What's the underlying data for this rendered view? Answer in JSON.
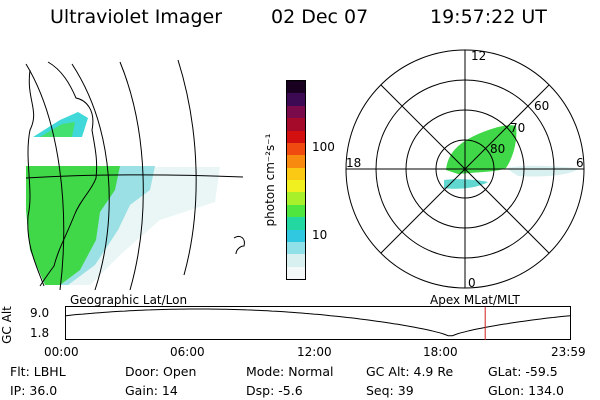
{
  "header": {
    "instrument": "Ultraviolet Imager",
    "date": "02 Dec 07",
    "time": "19:57:22 UT"
  },
  "colorbar": {
    "unit_label": "photon cm⁻²s⁻¹",
    "ticks": [
      "100",
      "10"
    ],
    "colors": [
      "#1a0020",
      "#3b0a52",
      "#7a0b4a",
      "#a50a2a",
      "#d21010",
      "#f04a10",
      "#f98a10",
      "#fbc814",
      "#f0f020",
      "#a8f02a",
      "#50e640",
      "#22d8a0",
      "#30c8e0",
      "#90e0e8",
      "#d8f0f0",
      "#f4f8f8"
    ]
  },
  "geo_panel": {
    "label": "Geographic Lat/Lon"
  },
  "polar_panel": {
    "label": "Apex MLat/MLT",
    "mlt_labels": {
      "top": "12",
      "left": "18",
      "right": "6",
      "bottom": "0"
    },
    "lat_labels": [
      "60",
      "70",
      "80"
    ]
  },
  "timeline": {
    "ylabel": "GC Alt",
    "yticks": [
      "9.0",
      "1.8"
    ],
    "xticks": [
      "00:00",
      "06:00",
      "12:00",
      "18:00",
      "23:59"
    ],
    "marker_hour": 19.96
  },
  "footer": {
    "filter": "Flt: LBHL",
    "ip": "IP: 36.0",
    "door": "Door: Open",
    "gain": "Gain: 14",
    "mode": "Mode: Normal",
    "dsp": "Dsp:    -5.6",
    "gc_alt": "GC Alt: 4.9 Re",
    "seq": "Seq: 39",
    "glat": "GLat: -59.5",
    "glon": "GLon: 134.0"
  },
  "colors": {
    "aurora_green": "#40d848",
    "aurora_cyan": "#40d8d8",
    "aurora_pale": "#cfeeee",
    "marker_red": "#d02020"
  }
}
